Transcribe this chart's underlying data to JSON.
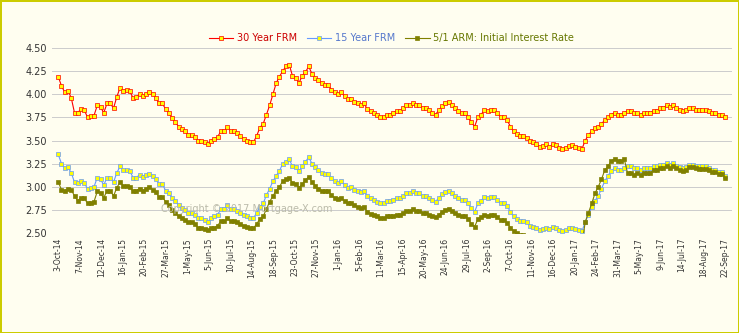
{
  "ylim": [
    2.5,
    4.55
  ],
  "yticks": [
    2.5,
    2.75,
    3.0,
    3.25,
    3.5,
    3.75,
    4.0,
    4.25,
    4.5
  ],
  "background_color": "#fffef0",
  "border_color": "#cccc00",
  "grid_color": "#cccccc",
  "copyright_text": "Copyright © 2017 Mortgage-X.com",
  "legend_labels": [
    "30 Year FRM",
    "15 Year FRM",
    "5/1 ARM: Initial Interest Rate"
  ],
  "line_colors": [
    "#ff0000",
    "#6699ff",
    "#808000"
  ],
  "marker_facecolors": [
    "#ffff00",
    "#ffff00",
    "#808000"
  ],
  "marker_edge_colors": [
    "#ff0000",
    "#6699ff",
    "#808000"
  ],
  "legend_text_colors": [
    "#cc0000",
    "#5577cc",
    "#667700"
  ],
  "xtick_labels": [
    "3-Oct-14",
    "7-Nov-14",
    "12-Dec-14",
    "16-Jan-15",
    "20-Feb-15",
    "27-Mar-15",
    "1-May-15",
    "5-Jun-15",
    "10-Jul-15",
    "14-Aug-15",
    "18-Sep-15",
    "23-Oct-15",
    "27-Nov-15",
    "1-Jan-16",
    "5-Feb-16",
    "11-Mar-16",
    "15-Apr-16",
    "20-May-16",
    "24-Jun-16",
    "29-Jul-16",
    "2-Sep-16",
    "7-Oct-16",
    "11-Nov-16",
    "16-Dec-16",
    "20-Jan-17",
    "24-Feb-17",
    "31-Mar-17",
    "5-May-17",
    "9-Jun-17",
    "14-Jul-17",
    "18-Aug-17",
    "22-Sep-17"
  ],
  "series_30yr": [
    4.19,
    4.09,
    4.02,
    4.04,
    3.96,
    3.8,
    3.8,
    3.84,
    3.83,
    3.75,
    3.76,
    3.77,
    3.88,
    3.86,
    3.8,
    3.9,
    3.9,
    3.85,
    3.97,
    4.07,
    4.04,
    4.05,
    4.03,
    3.96,
    3.97,
    4.0,
    3.98,
    4.0,
    4.02,
    4.0,
    3.96,
    3.9,
    3.9,
    3.84,
    3.8,
    3.74,
    3.7,
    3.65,
    3.62,
    3.6,
    3.56,
    3.56,
    3.54,
    3.5,
    3.5,
    3.48,
    3.46,
    3.5,
    3.52,
    3.54,
    3.6,
    3.6,
    3.65,
    3.6,
    3.6,
    3.58,
    3.55,
    3.52,
    3.5,
    3.48,
    3.48,
    3.55,
    3.64,
    3.68,
    3.78,
    3.88,
    4.0,
    4.12,
    4.19,
    4.25,
    4.3,
    4.32,
    4.2,
    4.18,
    4.12,
    4.2,
    4.24,
    4.3,
    4.22,
    4.18,
    4.15,
    4.12,
    4.1,
    4.1,
    4.05,
    4.02,
    4.0,
    4.02,
    3.98,
    3.95,
    3.95,
    3.92,
    3.9,
    3.88,
    3.9,
    3.84,
    3.82,
    3.8,
    3.78,
    3.75,
    3.75,
    3.78,
    3.78,
    3.8,
    3.82,
    3.82,
    3.85,
    3.88,
    3.88,
    3.9,
    3.88,
    3.88,
    3.85,
    3.85,
    3.83,
    3.8,
    3.78,
    3.83,
    3.87,
    3.9,
    3.92,
    3.88,
    3.85,
    3.82,
    3.8,
    3.8,
    3.75,
    3.7,
    3.65,
    3.75,
    3.78,
    3.83,
    3.82,
    3.83,
    3.83,
    3.8,
    3.75,
    3.75,
    3.72,
    3.65,
    3.6,
    3.57,
    3.55,
    3.55,
    3.53,
    3.5,
    3.48,
    3.46,
    3.43,
    3.44,
    3.46,
    3.43,
    3.46,
    3.45,
    3.42,
    3.41,
    3.42,
    3.44,
    3.45,
    3.43,
    3.42,
    3.41,
    3.5,
    3.56,
    3.6,
    3.63,
    3.65,
    3.68,
    3.72,
    3.75,
    3.78,
    3.8,
    3.78,
    3.78,
    3.8,
    3.82,
    3.82,
    3.8,
    3.8,
    3.78,
    3.8,
    3.8,
    3.8,
    3.82,
    3.82,
    3.85,
    3.85,
    3.88,
    3.86,
    3.88,
    3.85,
    3.83,
    3.82,
    3.83,
    3.85,
    3.85,
    3.83,
    3.83,
    3.83,
    3.83,
    3.82,
    3.8,
    3.8,
    3.78,
    3.78,
    3.75
  ],
  "series_15yr": [
    3.35,
    3.25,
    3.2,
    3.21,
    3.15,
    3.05,
    3.04,
    3.06,
    3.04,
    2.98,
    2.99,
    3.0,
    3.1,
    3.08,
    3.02,
    3.1,
    3.1,
    3.05,
    3.15,
    3.22,
    3.18,
    3.18,
    3.17,
    3.1,
    3.1,
    3.13,
    3.11,
    3.13,
    3.14,
    3.12,
    3.08,
    3.03,
    3.03,
    2.96,
    2.93,
    2.88,
    2.85,
    2.8,
    2.77,
    2.75,
    2.72,
    2.72,
    2.7,
    2.66,
    2.66,
    2.64,
    2.62,
    2.66,
    2.68,
    2.7,
    2.76,
    2.76,
    2.8,
    2.76,
    2.76,
    2.74,
    2.72,
    2.7,
    2.68,
    2.66,
    2.66,
    2.72,
    2.78,
    2.82,
    2.91,
    2.98,
    3.06,
    3.12,
    3.17,
    3.25,
    3.27,
    3.3,
    3.22,
    3.21,
    3.17,
    3.22,
    3.27,
    3.32,
    3.25,
    3.21,
    3.18,
    3.15,
    3.14,
    3.14,
    3.09,
    3.06,
    3.04,
    3.06,
    3.02,
    2.99,
    3.0,
    2.97,
    2.95,
    2.94,
    2.95,
    2.9,
    2.88,
    2.86,
    2.84,
    2.82,
    2.82,
    2.85,
    2.85,
    2.86,
    2.88,
    2.88,
    2.9,
    2.93,
    2.93,
    2.95,
    2.93,
    2.93,
    2.9,
    2.9,
    2.88,
    2.86,
    2.84,
    2.88,
    2.92,
    2.94,
    2.96,
    2.93,
    2.9,
    2.88,
    2.86,
    2.86,
    2.82,
    2.77,
    2.73,
    2.82,
    2.85,
    2.89,
    2.88,
    2.89,
    2.89,
    2.86,
    2.82,
    2.82,
    2.79,
    2.73,
    2.68,
    2.65,
    2.63,
    2.63,
    2.62,
    2.58,
    2.57,
    2.55,
    2.53,
    2.54,
    2.56,
    2.54,
    2.57,
    2.56,
    2.53,
    2.52,
    2.53,
    2.55,
    2.56,
    2.54,
    2.53,
    2.52,
    2.62,
    2.7,
    2.78,
    2.85,
    2.9,
    2.98,
    3.06,
    3.12,
    3.17,
    3.2,
    3.18,
    3.18,
    3.2,
    3.22,
    3.23,
    3.2,
    3.2,
    3.18,
    3.2,
    3.2,
    3.2,
    3.22,
    3.22,
    3.24,
    3.24,
    3.26,
    3.24,
    3.26,
    3.23,
    3.21,
    3.2,
    3.21,
    3.24,
    3.24,
    3.22,
    3.22,
    3.22,
    3.22,
    3.2,
    3.18,
    3.18,
    3.16,
    3.16,
    3.12
  ],
  "series_arm": [
    3.05,
    2.97,
    2.96,
    2.98,
    2.97,
    2.9,
    2.85,
    2.88,
    2.88,
    2.82,
    2.83,
    2.84,
    2.95,
    2.93,
    2.88,
    2.96,
    2.96,
    2.9,
    2.99,
    3.05,
    3.01,
    3.01,
    3.0,
    2.95,
    2.96,
    2.98,
    2.96,
    2.98,
    3.0,
    2.97,
    2.94,
    2.89,
    2.89,
    2.84,
    2.8,
    2.75,
    2.72,
    2.68,
    2.66,
    2.64,
    2.62,
    2.62,
    2.6,
    2.56,
    2.56,
    2.54,
    2.53,
    2.55,
    2.56,
    2.58,
    2.63,
    2.63,
    2.66,
    2.63,
    2.63,
    2.62,
    2.6,
    2.58,
    2.57,
    2.55,
    2.55,
    2.6,
    2.65,
    2.68,
    2.76,
    2.84,
    2.9,
    2.96,
    3.0,
    3.06,
    3.08,
    3.1,
    3.04,
    3.03,
    2.99,
    3.03,
    3.07,
    3.11,
    3.05,
    3.01,
    2.98,
    2.96,
    2.95,
    2.95,
    2.91,
    2.88,
    2.87,
    2.88,
    2.85,
    2.82,
    2.82,
    2.8,
    2.78,
    2.77,
    2.78,
    2.73,
    2.71,
    2.7,
    2.68,
    2.66,
    2.66,
    2.68,
    2.68,
    2.69,
    2.7,
    2.7,
    2.72,
    2.74,
    2.74,
    2.76,
    2.74,
    2.74,
    2.72,
    2.72,
    2.7,
    2.69,
    2.67,
    2.7,
    2.73,
    2.75,
    2.76,
    2.74,
    2.72,
    2.7,
    2.68,
    2.68,
    2.65,
    2.6,
    2.57,
    2.65,
    2.67,
    2.7,
    2.69,
    2.7,
    2.7,
    2.67,
    2.64,
    2.64,
    2.61,
    2.56,
    2.52,
    2.5,
    2.48,
    2.48,
    2.47,
    2.44,
    2.43,
    2.41,
    2.4,
    2.4,
    2.42,
    2.4,
    2.42,
    2.41,
    2.39,
    2.38,
    2.4,
    2.41,
    2.42,
    2.4,
    2.39,
    2.38,
    2.62,
    2.72,
    2.82,
    2.93,
    3.0,
    3.08,
    3.18,
    3.22,
    3.28,
    3.3,
    3.28,
    3.28,
    3.3,
    3.15,
    3.15,
    3.13,
    3.15,
    3.13,
    3.15,
    3.15,
    3.15,
    3.18,
    3.18,
    3.2,
    3.2,
    3.22,
    3.2,
    3.22,
    3.2,
    3.18,
    3.17,
    3.18,
    3.21,
    3.21,
    3.2,
    3.19,
    3.19,
    3.19,
    3.18,
    3.16,
    3.16,
    3.14,
    3.14,
    3.1
  ]
}
